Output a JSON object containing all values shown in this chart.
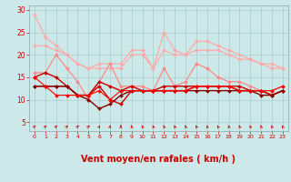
{
  "background_color": "#cce8e8",
  "grid_color": "#aacccc",
  "xlabel": "Vent moyen/en rafales ( km/h )",
  "xlabel_color": "#cc0000",
  "xlabel_fontsize": 7,
  "tick_color": "#cc0000",
  "x_ticks": [
    0,
    1,
    2,
    3,
    4,
    5,
    6,
    7,
    8,
    9,
    10,
    11,
    12,
    13,
    14,
    15,
    16,
    17,
    18,
    19,
    20,
    21,
    22,
    23
  ],
  "ylim": [
    3,
    31
  ],
  "xlim": [
    -0.5,
    23.5
  ],
  "yticks": [
    5,
    10,
    15,
    20,
    25,
    30
  ],
  "lines": [
    {
      "color": "#ffaaaa",
      "linewidth": 0.9,
      "marker": "D",
      "markersize": 2.0,
      "y": [
        29,
        24,
        22,
        20,
        18,
        17,
        18,
        18,
        18,
        21,
        21,
        17,
        25,
        21,
        20,
        23,
        23,
        22,
        21,
        20,
        19,
        18,
        18,
        17
      ]
    },
    {
      "color": "#ffaaaa",
      "linewidth": 0.9,
      "marker": "D",
      "markersize": 2.0,
      "y": [
        22,
        22,
        21,
        20,
        18,
        17,
        17,
        17,
        17,
        20,
        20,
        17,
        21,
        20,
        20,
        21,
        21,
        21,
        20,
        19,
        19,
        18,
        17,
        17
      ]
    },
    {
      "color": "#ff8888",
      "linewidth": 0.9,
      "marker": "D",
      "markersize": 2.0,
      "y": [
        16,
        16,
        20,
        17,
        14,
        10,
        14,
        18,
        13,
        13,
        13,
        12,
        17,
        13,
        14,
        18,
        17,
        15,
        14,
        14,
        13,
        12,
        12,
        13
      ]
    },
    {
      "color": "#cc0000",
      "linewidth": 1.0,
      "marker": "D",
      "markersize": 2.0,
      "y": [
        15,
        16,
        15,
        13,
        11,
        11,
        14,
        13,
        12,
        13,
        12,
        12,
        13,
        13,
        13,
        13,
        13,
        13,
        13,
        13,
        12,
        12,
        11,
        12
      ]
    },
    {
      "color": "#cc0000",
      "linewidth": 1.0,
      "marker": "D",
      "markersize": 2.0,
      "y": [
        13,
        13,
        13,
        13,
        11,
        11,
        13,
        10,
        9,
        12,
        12,
        12,
        12,
        12,
        12,
        13,
        13,
        13,
        13,
        12,
        12,
        12,
        11,
        12
      ]
    },
    {
      "color": "#880000",
      "linewidth": 1.0,
      "marker": "D",
      "markersize": 2.0,
      "y": [
        13,
        13,
        13,
        13,
        11,
        10,
        8,
        9,
        11,
        12,
        12,
        12,
        12,
        12,
        12,
        12,
        12,
        12,
        12,
        12,
        12,
        11,
        11,
        12
      ]
    },
    {
      "color": "#ff0000",
      "linewidth": 0.8,
      "marker": "D",
      "markersize": 2.0,
      "y": [
        15,
        13,
        11,
        11,
        11,
        11,
        12,
        10,
        12,
        12,
        12,
        12,
        12,
        12,
        12,
        13,
        13,
        13,
        13,
        12,
        12,
        12,
        12,
        13
      ]
    }
  ],
  "arrow_color": "#cc0000",
  "arrow_angles_deg": [
    45,
    45,
    45,
    45,
    45,
    45,
    20,
    10,
    0,
    350,
    340,
    340,
    340,
    340,
    340,
    340,
    340,
    340,
    340,
    340,
    340,
    340,
    340,
    340
  ]
}
